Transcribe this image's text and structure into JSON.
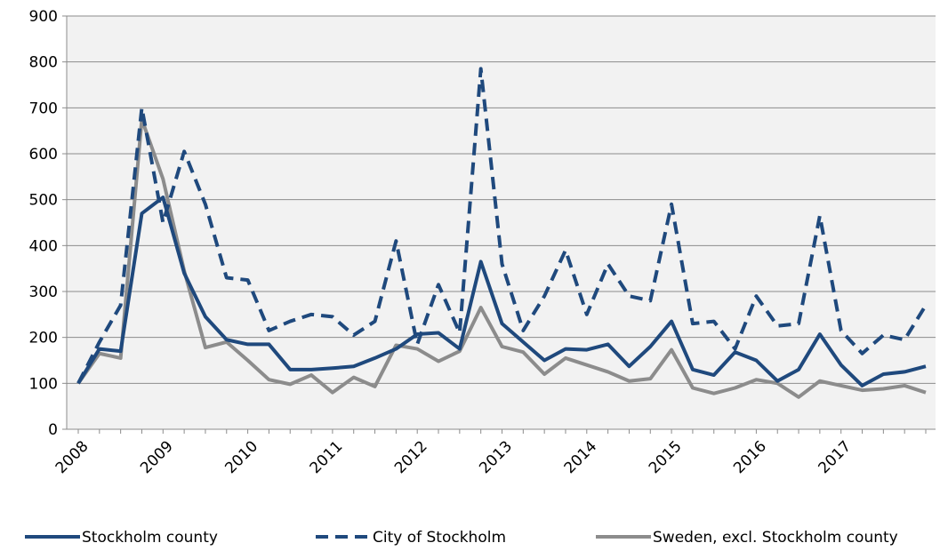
{
  "chart_data": {
    "type": "line",
    "categories": [
      "2008",
      null,
      null,
      null,
      "2009",
      null,
      null,
      null,
      "2010",
      null,
      null,
      null,
      "2011",
      null,
      null,
      null,
      "2012",
      null,
      null,
      null,
      "2013",
      null,
      null,
      null,
      "2014",
      null,
      null,
      null,
      "2015",
      null,
      null,
      null,
      "2016",
      null,
      null,
      null,
      "2017",
      null,
      null,
      null,
      null
    ],
    "series": [
      {
        "name": "Stockholm county",
        "color": "#1f497d",
        "dash": false,
        "values": [
          100,
          175,
          170,
          470,
          505,
          340,
          245,
          195,
          185,
          185,
          130,
          130,
          133,
          137,
          155,
          175,
          207,
          210,
          175,
          365,
          230,
          190,
          150,
          175,
          173,
          185,
          137,
          180,
          235,
          130,
          118,
          168,
          150,
          105,
          130,
          207,
          140,
          95,
          120,
          125,
          137
        ]
      },
      {
        "name": "City of Stockholm",
        "color": "#1f497d",
        "dash": true,
        "values": [
          100,
          190,
          270,
          700,
          450,
          605,
          490,
          330,
          325,
          215,
          235,
          250,
          245,
          205,
          235,
          410,
          185,
          315,
          210,
          785,
          360,
          215,
          290,
          390,
          250,
          360,
          290,
          280,
          490,
          230,
          235,
          175,
          290,
          225,
          230,
          465,
          215,
          165,
          205,
          195,
          270
        ]
      },
      {
        "name": "Sweden, excl. Stockholm county",
        "color": "#8c8c8c",
        "dash": false,
        "values": [
          100,
          165,
          155,
          675,
          545,
          345,
          178,
          190,
          150,
          108,
          98,
          118,
          80,
          113,
          93,
          183,
          175,
          148,
          170,
          265,
          180,
          168,
          120,
          155,
          140,
          125,
          105,
          110,
          173,
          90,
          78,
          90,
          108,
          100,
          70,
          105,
          95,
          85,
          88,
          95,
          80
        ]
      }
    ],
    "ylim": [
      0,
      900
    ],
    "yticks": [
      0,
      100,
      200,
      300,
      400,
      500,
      600,
      700,
      800,
      900
    ],
    "grid": true,
    "legend": "bottom"
  }
}
